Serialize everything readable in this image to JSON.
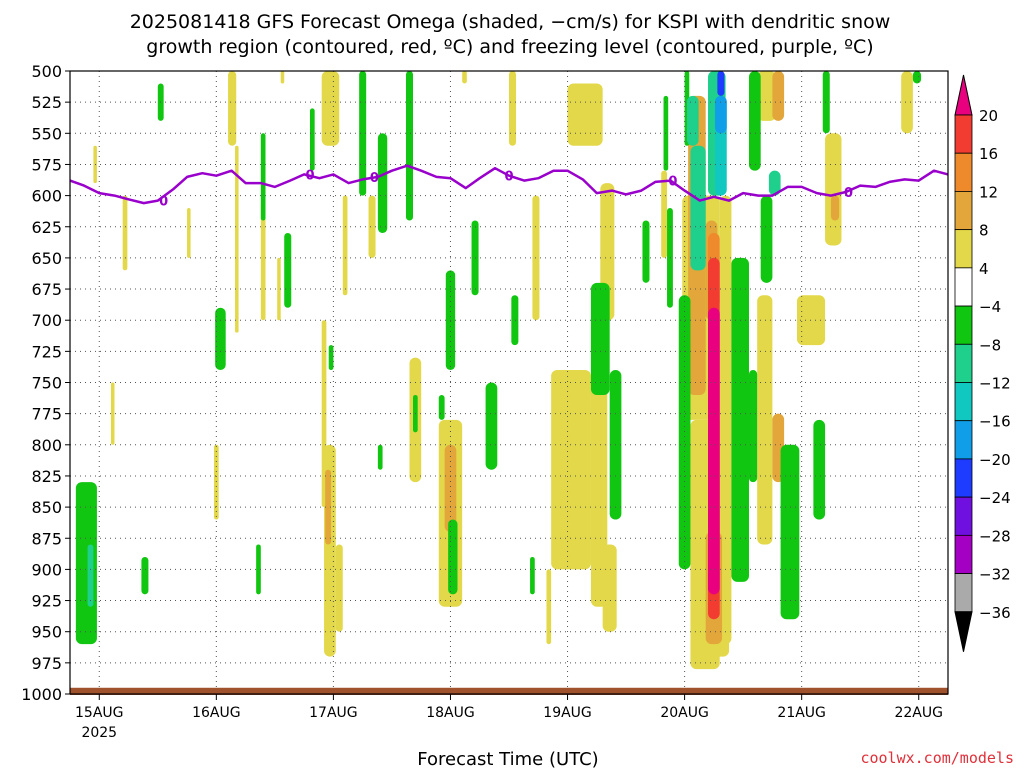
{
  "chart_data": {
    "type": "heatmap",
    "title_lines": [
      "2025081418 GFS Forecast Omega (shaded, −cm/s) for KSPI with dendritic snow",
      "growth region (contoured, red, ºC) and freezing level (contoured, purple, ºC)"
    ],
    "xlabel": "Forecast Time (UTC)",
    "ylabel": "",
    "credit": "coolwx.com/models",
    "y_axis": {
      "unit": "hPa",
      "range": [
        1000,
        500
      ],
      "ticks": [
        "500",
        "525",
        "550",
        "575",
        "600",
        "625",
        "650",
        "675",
        "700",
        "725",
        "750",
        "775",
        "800",
        "825",
        "850",
        "875",
        "900",
        "925",
        "950",
        "975",
        "1000"
      ]
    },
    "x_axis": {
      "unit": "days since 2025-08-15 00Z",
      "range": [
        -0.25,
        7.25
      ],
      "ticks": [
        {
          "x": 0,
          "label": "15AUG",
          "sub": "2025"
        },
        {
          "x": 1,
          "label": "16AUG",
          "sub": ""
        },
        {
          "x": 2,
          "label": "17AUG",
          "sub": ""
        },
        {
          "x": 3,
          "label": "18AUG",
          "sub": ""
        },
        {
          "x": 4,
          "label": "19AUG",
          "sub": ""
        },
        {
          "x": 5,
          "label": "20AUG",
          "sub": ""
        },
        {
          "x": 6,
          "label": "21AUG",
          "sub": ""
        },
        {
          "x": 7,
          "label": "22AUG",
          "sub": ""
        }
      ]
    },
    "colorbar": {
      "levels": [
        "20",
        "16",
        "12",
        "8",
        "4",
        "−4",
        "−8",
        "−12",
        "−16",
        "−20",
        "−24",
        "−28",
        "−32",
        "−36"
      ],
      "colors": [
        "#e8007f",
        "#f23c32",
        "#ef8a2c",
        "#e3a63a",
        "#e3d84a",
        "#ffffff",
        "#10c610",
        "#1ed08c",
        "#10c8c0",
        "#109ee8",
        "#1e3cff",
        "#7010e0",
        "#a400c4",
        "#aaaaaa",
        "#000000"
      ]
    },
    "colors": {
      "ground": "#a0522d",
      "freezing_level": "#9900cc",
      "grid": "#555555"
    },
    "freezing_level_label": "0",
    "freezing_level": {
      "x": [
        -0.25,
        -0.13,
        0,
        0.13,
        0.25,
        0.38,
        0.5,
        0.63,
        0.75,
        0.88,
        1,
        1.13,
        1.25,
        1.38,
        1.5,
        1.63,
        1.75,
        1.88,
        2,
        2.13,
        2.25,
        2.38,
        2.5,
        2.63,
        2.75,
        2.88,
        3,
        3.13,
        3.25,
        3.38,
        3.5,
        3.63,
        3.75,
        3.88,
        4,
        4.13,
        4.25,
        4.38,
        4.5,
        4.63,
        4.75,
        4.88,
        5,
        5.13,
        5.25,
        5.38,
        5.5,
        5.63,
        5.75,
        5.88,
        6,
        6.13,
        6.25,
        6.38,
        6.5,
        6.63,
        6.75,
        6.88,
        7,
        7.13,
        7.25
      ],
      "y": [
        588,
        592,
        598,
        600,
        603,
        606,
        604,
        595,
        585,
        582,
        584,
        580,
        590,
        590,
        593,
        588,
        583,
        586,
        583,
        590,
        587,
        585,
        580,
        576,
        580,
        585,
        586,
        594,
        586,
        578,
        584,
        588,
        586,
        580,
        580,
        587,
        598,
        596,
        599,
        596,
        589,
        588,
        596,
        604,
        601,
        604,
        598,
        600,
        600,
        593,
        593,
        598,
        600,
        597,
        592,
        593,
        589,
        587,
        588,
        580,
        583
      ]
    },
    "omega_regions": [
      {
        "value": 6,
        "x": [
          -0.05,
          -0.02
        ],
        "p": [
          560,
          590
        ]
      },
      {
        "value": 6,
        "x": [
          0.2,
          0.24
        ],
        "p": [
          600,
          660
        ]
      },
      {
        "value": 6,
        "x": [
          0.1,
          0.13
        ],
        "p": [
          750,
          800
        ]
      },
      {
        "value": 6,
        "x": [
          0.75,
          0.78
        ],
        "p": [
          610,
          650
        ]
      },
      {
        "value": 6,
        "x": [
          1.1,
          1.17
        ],
        "p": [
          500,
          560
        ]
      },
      {
        "value": 6,
        "x": [
          1.16,
          1.19
        ],
        "p": [
          560,
          710
        ]
      },
      {
        "value": 6,
        "x": [
          1.38,
          1.42
        ],
        "p": [
          605,
          700
        ]
      },
      {
        "value": 6,
        "x": [
          1.52,
          1.55
        ],
        "p": [
          650,
          700
        ]
      },
      {
        "value": 6,
        "x": [
          0.98,
          1.02
        ],
        "p": [
          800,
          860
        ]
      },
      {
        "value": 6,
        "x": [
          1.9,
          2.05
        ],
        "p": [
          500,
          560
        ]
      },
      {
        "value": 6,
        "x": [
          1.9,
          1.94
        ],
        "p": [
          700,
          850
        ]
      },
      {
        "value": 6,
        "x": [
          2.08,
          2.12
        ],
        "p": [
          600,
          680
        ]
      },
      {
        "value": 6,
        "x": [
          2.3,
          2.36
        ],
        "p": [
          600,
          650
        ]
      },
      {
        "value": 6,
        "x": [
          1.92,
          2.02
        ],
        "p": [
          800,
          970
        ]
      },
      {
        "value": 6,
        "x": [
          2.02,
          2.08
        ],
        "p": [
          880,
          950
        ]
      },
      {
        "value": 6,
        "x": [
          1.55,
          1.58
        ],
        "p": [
          500,
          510
        ]
      },
      {
        "value": 6,
        "x": [
          2.65,
          2.75
        ],
        "p": [
          730,
          830
        ]
      },
      {
        "value": 6,
        "x": [
          2.9,
          3.1
        ],
        "p": [
          780,
          930
        ]
      },
      {
        "value": 6,
        "x": [
          3.5,
          3.56
        ],
        "p": [
          500,
          560
        ]
      },
      {
        "value": 6,
        "x": [
          3.1,
          3.14
        ],
        "p": [
          500,
          510
        ]
      },
      {
        "value": 6,
        "x": [
          3.7,
          3.76
        ],
        "p": [
          600,
          700
        ]
      },
      {
        "value": 6,
        "x": [
          3.82,
          3.86
        ],
        "p": [
          900,
          960
        ]
      },
      {
        "value": 6,
        "x": [
          3.86,
          4.2
        ],
        "p": [
          740,
          900
        ]
      },
      {
        "value": 6,
        "x": [
          4.2,
          4.34
        ],
        "p": [
          700,
          930
        ]
      },
      {
        "value": 6,
        "x": [
          4.28,
          4.4
        ],
        "p": [
          590,
          700
        ]
      },
      {
        "value": 6,
        "x": [
          4.0,
          4.3
        ],
        "p": [
          510,
          560
        ]
      },
      {
        "value": 6,
        "x": [
          4.8,
          4.85
        ],
        "p": [
          580,
          650
        ]
      },
      {
        "value": 6,
        "x": [
          4.3,
          4.42
        ],
        "p": [
          880,
          950
        ]
      },
      {
        "value": 6,
        "x": [
          5.62,
          5.75
        ],
        "p": [
          680,
          880
        ]
      },
      {
        "value": 6,
        "x": [
          5.62,
          5.78
        ],
        "p": [
          500,
          540
        ]
      },
      {
        "value": 6,
        "x": [
          5.96,
          6.2
        ],
        "p": [
          680,
          720
        ]
      },
      {
        "value": 6,
        "x": [
          6.2,
          6.34
        ],
        "p": [
          550,
          640
        ]
      },
      {
        "value": 6,
        "x": [
          6.85,
          6.95
        ],
        "p": [
          500,
          550
        ]
      },
      {
        "value": 6,
        "x": [
          4.98,
          5.3
        ],
        "p": [
          600,
          780
        ]
      },
      {
        "value": 6,
        "x": [
          5.3,
          5.4
        ],
        "p": [
          600,
          960
        ]
      },
      {
        "value": 6,
        "x": [
          5.22,
          5.38
        ],
        "p": [
          780,
          970
        ]
      },
      {
        "value": 6,
        "x": [
          5.05,
          5.3
        ],
        "p": [
          780,
          980
        ]
      },
      {
        "value": 10,
        "x": [
          5.03,
          5.18
        ],
        "p": [
          520,
          760
        ]
      },
      {
        "value": 10,
        "x": [
          5.18,
          5.28
        ],
        "p": [
          620,
          700
        ]
      },
      {
        "value": 10,
        "x": [
          5.18,
          5.32
        ],
        "p": [
          870,
          960
        ]
      },
      {
        "value": 10,
        "x": [
          1.93,
          1.98
        ],
        "p": [
          820,
          880
        ]
      },
      {
        "value": 10,
        "x": [
          2.95,
          3.05
        ],
        "p": [
          800,
          870
        ]
      },
      {
        "value": 10,
        "x": [
          5.75,
          5.85
        ],
        "p": [
          775,
          830
        ]
      },
      {
        "value": 10,
        "x": [
          5.75,
          5.85
        ],
        "p": [
          500,
          540
        ]
      },
      {
        "value": 10,
        "x": [
          6.25,
          6.32
        ],
        "p": [
          600,
          620
        ]
      },
      {
        "value": 14,
        "x": [
          5.2,
          5.3
        ],
        "p": [
          630,
          690
        ]
      },
      {
        "value": 18,
        "x": [
          5.2,
          5.3
        ],
        "p": [
          650,
          940
        ]
      },
      {
        "value": 22,
        "x": [
          5.2,
          5.3
        ],
        "p": [
          690,
          920
        ]
      },
      {
        "value": -6,
        "x": [
          -0.2,
          -0.02
        ],
        "p": [
          830,
          960
        ]
      },
      {
        "value": -6,
        "x": [
          0.36,
          0.42
        ],
        "p": [
          890,
          920
        ]
      },
      {
        "value": -6,
        "x": [
          0.99,
          1.08
        ],
        "p": [
          690,
          740
        ]
      },
      {
        "value": -6,
        "x": [
          1.34,
          1.38
        ],
        "p": [
          880,
          920
        ]
      },
      {
        "value": -6,
        "x": [
          1.38,
          1.42
        ],
        "p": [
          550,
          620
        ]
      },
      {
        "value": -6,
        "x": [
          1.58,
          1.64
        ],
        "p": [
          630,
          690
        ]
      },
      {
        "value": -6,
        "x": [
          1.8,
          1.84
        ],
        "p": [
          530,
          580
        ]
      },
      {
        "value": -6,
        "x": [
          1.96,
          2.0
        ],
        "p": [
          720,
          740
        ]
      },
      {
        "value": -6,
        "x": [
          2.22,
          2.28
        ],
        "p": [
          500,
          600
        ]
      },
      {
        "value": -6,
        "x": [
          2.38,
          2.46
        ],
        "p": [
          550,
          630
        ]
      },
      {
        "value": -6,
        "x": [
          2.38,
          2.42
        ],
        "p": [
          800,
          820
        ]
      },
      {
        "value": -6,
        "x": [
          2.62,
          2.68
        ],
        "p": [
          500,
          620
        ]
      },
      {
        "value": -6,
        "x": [
          2.68,
          2.72
        ],
        "p": [
          760,
          790
        ]
      },
      {
        "value": -6,
        "x": [
          2.9,
          2.95
        ],
        "p": [
          760,
          780
        ]
      },
      {
        "value": -6,
        "x": [
          2.96,
          3.04
        ],
        "p": [
          660,
          740
        ]
      },
      {
        "value": -6,
        "x": [
          2.98,
          3.06
        ],
        "p": [
          860,
          920
        ]
      },
      {
        "value": -6,
        "x": [
          3.18,
          3.24
        ],
        "p": [
          620,
          680
        ]
      },
      {
        "value": -6,
        "x": [
          3.3,
          3.4
        ],
        "p": [
          750,
          820
        ]
      },
      {
        "value": -6,
        "x": [
          3.52,
          3.58
        ],
        "p": [
          680,
          720
        ]
      },
      {
        "value": -6,
        "x": [
          3.68,
          3.72
        ],
        "p": [
          890,
          920
        ]
      },
      {
        "value": -6,
        "x": [
          4.2,
          4.36
        ],
        "p": [
          670,
          760
        ]
      },
      {
        "value": -6,
        "x": [
          4.36,
          4.46
        ],
        "p": [
          740,
          860
        ]
      },
      {
        "value": -6,
        "x": [
          4.64,
          4.7
        ],
        "p": [
          620,
          670
        ]
      },
      {
        "value": -6,
        "x": [
          4.82,
          4.86
        ],
        "p": [
          520,
          580
        ]
      },
      {
        "value": -6,
        "x": [
          5.0,
          5.04
        ],
        "p": [
          500,
          560
        ]
      },
      {
        "value": -6,
        "x": [
          4.95,
          5.05
        ],
        "p": [
          680,
          900
        ]
      },
      {
        "value": -6,
        "x": [
          4.85,
          4.9
        ],
        "p": [
          610,
          690
        ]
      },
      {
        "value": -6,
        "x": [
          5.4,
          5.55
        ],
        "p": [
          650,
          910
        ]
      },
      {
        "value": -6,
        "x": [
          5.55,
          5.62
        ],
        "p": [
          740,
          830
        ]
      },
      {
        "value": -6,
        "x": [
          5.55,
          5.65
        ],
        "p": [
          500,
          580
        ]
      },
      {
        "value": -6,
        "x": [
          5.65,
          5.75
        ],
        "p": [
          600,
          670
        ]
      },
      {
        "value": -6,
        "x": [
          5.82,
          5.98
        ],
        "p": [
          800,
          940
        ]
      },
      {
        "value": -6,
        "x": [
          6.1,
          6.2
        ],
        "p": [
          780,
          860
        ]
      },
      {
        "value": -6,
        "x": [
          6.18,
          6.24
        ],
        "p": [
          500,
          550
        ]
      },
      {
        "value": -6,
        "x": [
          6.95,
          7.02
        ],
        "p": [
          500,
          510
        ]
      },
      {
        "value": -6,
        "x": [
          0.5,
          0.55
        ],
        "p": [
          510,
          540
        ]
      },
      {
        "value": -10,
        "x": [
          5.02,
          5.12
        ],
        "p": [
          520,
          560
        ]
      },
      {
        "value": -10,
        "x": [
          5.05,
          5.18
        ],
        "p": [
          560,
          660
        ]
      },
      {
        "value": -10,
        "x": [
          5.2,
          5.35
        ],
        "p": [
          500,
          600
        ]
      },
      {
        "value": -10,
        "x": [
          5.72,
          5.82
        ],
        "p": [
          580,
          600
        ]
      },
      {
        "value": -10,
        "x": [
          -0.1,
          -0.05
        ],
        "p": [
          880,
          930
        ]
      },
      {
        "value": -14,
        "x": [
          5.26,
          5.36
        ],
        "p": [
          520,
          600
        ]
      },
      {
        "value": -18,
        "x": [
          5.26,
          5.36
        ],
        "p": [
          520,
          550
        ]
      },
      {
        "value": -22,
        "x": [
          5.28,
          5.34
        ],
        "p": [
          500,
          520
        ]
      }
    ]
  }
}
